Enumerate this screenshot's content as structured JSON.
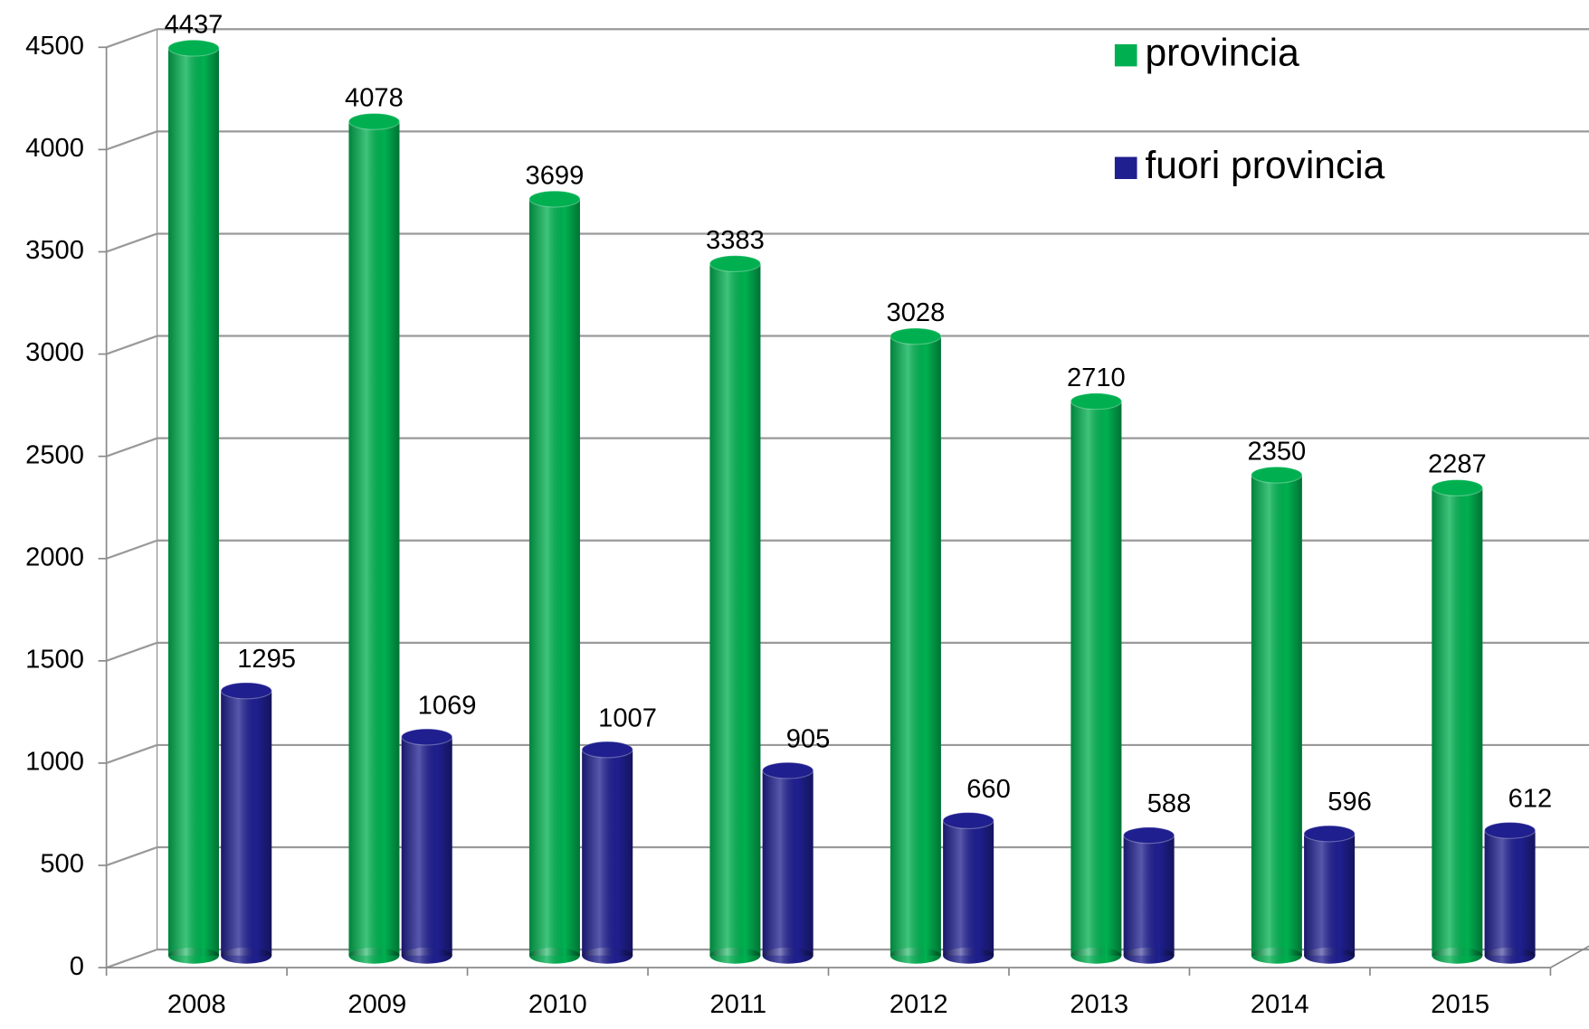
{
  "chart_data": {
    "type": "bar3d",
    "categories": [
      "2008",
      "2009",
      "2010",
      "2011",
      "2012",
      "2013",
      "2014",
      "2015"
    ],
    "series": [
      {
        "name": "provincia",
        "color": "#00b050",
        "values": [
          4437,
          4078,
          3699,
          3383,
          3028,
          2710,
          2350,
          2287
        ]
      },
      {
        "name": "fuori provincia",
        "color": "#1f1f8f",
        "values": [
          1295,
          1069,
          1007,
          905,
          660,
          588,
          596,
          612
        ]
      }
    ],
    "ylim": [
      0,
      4500
    ],
    "yticks": [
      0,
      500,
      1000,
      1500,
      2000,
      2500,
      3000,
      3500,
      4000,
      4500
    ],
    "grid": true,
    "legend": "top-right"
  }
}
